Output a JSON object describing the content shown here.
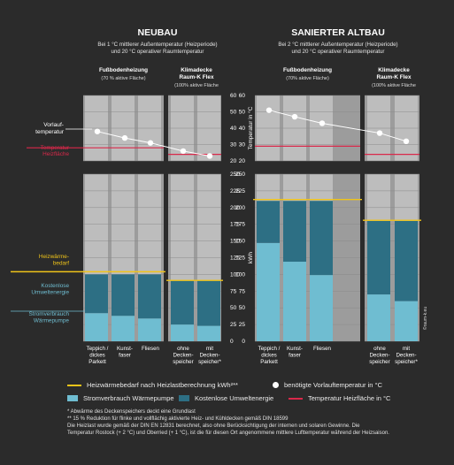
{
  "colors": {
    "background": "#2b2b2b",
    "panel": "#bdbdbd",
    "panel_dark": "#9c9c9c",
    "strom": "#6fbdd1",
    "umwelt": "#2d6f84",
    "heat_demand": "#f0c419",
    "temp_surface": "#d9284a",
    "vorlauf": "#ffffff"
  },
  "copyright": "©raum-k.eu",
  "legend": {
    "heat_demand": "Heizwärmebedarf nach Heizlastberechnung kWh²**",
    "vorlauf": "benötigte Vorlauftemperatur in °C",
    "strom": "Stromverbrauch Wärmepumpe",
    "umwelt": "Kostenlose Umweltenergie",
    "temp_surface": "Temperatur Heizfläche in °C"
  },
  "footnotes": [
    "* Abwärme des Deckenspeichers deckt eine Grundlast",
    "** 15 % Reduktion für flinke und vollflächig aktivierte Heiz- und Kühldecken gemäß DIN 18599",
    "Die Heizlast wurde gemäß der DIN EN 12831 berechnet, also ohne Berücksichtigung der internen und solaren Gewinne. Die",
    "Temperatur Rostock (+ 2 °C) und Oberried (+ 1 °C), ist die für diesen Ort angenommene mittlere Lufttemperatur während der Heizsaison."
  ],
  "side_labels": {
    "vorlauf": [
      "Vorlauf-",
      "temperatur"
    ],
    "temp_surface": [
      "Temperatur",
      "Heizfläche"
    ],
    "heat_demand": [
      "Heizwärme-",
      "bedarf"
    ],
    "umwelt": [
      "Kostenlose",
      "Umweltenergie"
    ],
    "strom": [
      "Stromverbrauch",
      "Wärmepumpe"
    ]
  },
  "chart_data": [
    {
      "type": "bar",
      "title": "NEUBAU",
      "subtitle": [
        "Bei 1 °C mittlerer Außentemperatur (Heizperiode)",
        "und 20 °C operativer Raumtemperatur"
      ],
      "groups": [
        {
          "name": [
            "Fußbodenheizung"
          ],
          "note": "(70 % aktive Fläche)"
        },
        {
          "name": [
            "Klimadecke",
            "Raum-K Flex"
          ],
          "note": "(100% aktive Fläche"
        }
      ],
      "categories": [
        [
          "Teppich /",
          "dickes",
          "Parkett"
        ],
        [
          "Kunst-",
          "faser"
        ],
        [
          "Fliesen"
        ],
        [
          "ohne",
          "Decken-",
          "speicher"
        ],
        [
          "mit",
          "Decken-",
          "speicher*"
        ]
      ],
      "series": [
        {
          "name": "Stromverbrauch Wärmepumpe",
          "values": [
            42,
            38,
            34,
            25,
            23
          ]
        },
        {
          "name": "Kostenlose Umweltenergie",
          "values": [
            58,
            62,
            66,
            66,
            68
          ]
        }
      ],
      "heat_demand": [
        104,
        91
      ],
      "vorlauf": [
        38,
        34,
        31,
        26,
        23
      ],
      "temp_surface": [
        28,
        24
      ],
      "temp_axis": {
        "label": "Temperatur in °C",
        "ticks": [
          20,
          30,
          40,
          50,
          60
        ],
        "ylim": [
          20,
          60
        ]
      },
      "kwh_axis": {
        "label": "kWh",
        "ticks": [
          0,
          25,
          50,
          75,
          100,
          125,
          150,
          175,
          200,
          225,
          250
        ],
        "ylim": [
          0,
          250
        ]
      }
    },
    {
      "type": "bar",
      "title": "SANIERTER ALTBAU",
      "subtitle": [
        "Bei 2 °C mittlerer Außentemperatur (Heizperiode)",
        "und 20 °C operativer Raumtemperatur"
      ],
      "groups": [
        {
          "name": [
            "Fußbodenheizung"
          ],
          "note": "(70% aktive Fläche)"
        },
        {
          "name": [
            "Klimadecke",
            "Raum-K Flex"
          ],
          "note": "(100% aktive Fläche"
        }
      ],
      "categories": [
        [
          "Teppich /",
          "dickes",
          "Parkett"
        ],
        [
          "Kunst-",
          "faser"
        ],
        [
          "Fliesen"
        ],
        [
          "ohne",
          "Decken-",
          "speicher"
        ],
        [
          "mit",
          "Decken-",
          "speicher*"
        ]
      ],
      "series": [
        {
          "name": "Stromverbrauch Wärmepumpe",
          "values": [
            147,
            119,
            99,
            70,
            60
          ]
        },
        {
          "name": "Kostenlose Umweltenergie",
          "values": [
            63,
            91,
            111,
            110,
            120
          ]
        }
      ],
      "heat_demand": [
        212,
        181
      ],
      "vorlauf": [
        51,
        47,
        43,
        37,
        32
      ],
      "temp_surface": [
        29,
        24
      ],
      "temp_axis": {
        "label": "Temperatur in °C",
        "ticks": [
          20,
          30,
          40,
          50,
          60
        ],
        "ylim": [
          20,
          60
        ]
      },
      "kwh_axis": {
        "label": "kWh",
        "ticks": [
          0,
          25,
          50,
          75,
          100,
          125,
          150,
          175,
          200,
          225,
          250
        ],
        "ylim": [
          0,
          250
        ]
      }
    }
  ]
}
